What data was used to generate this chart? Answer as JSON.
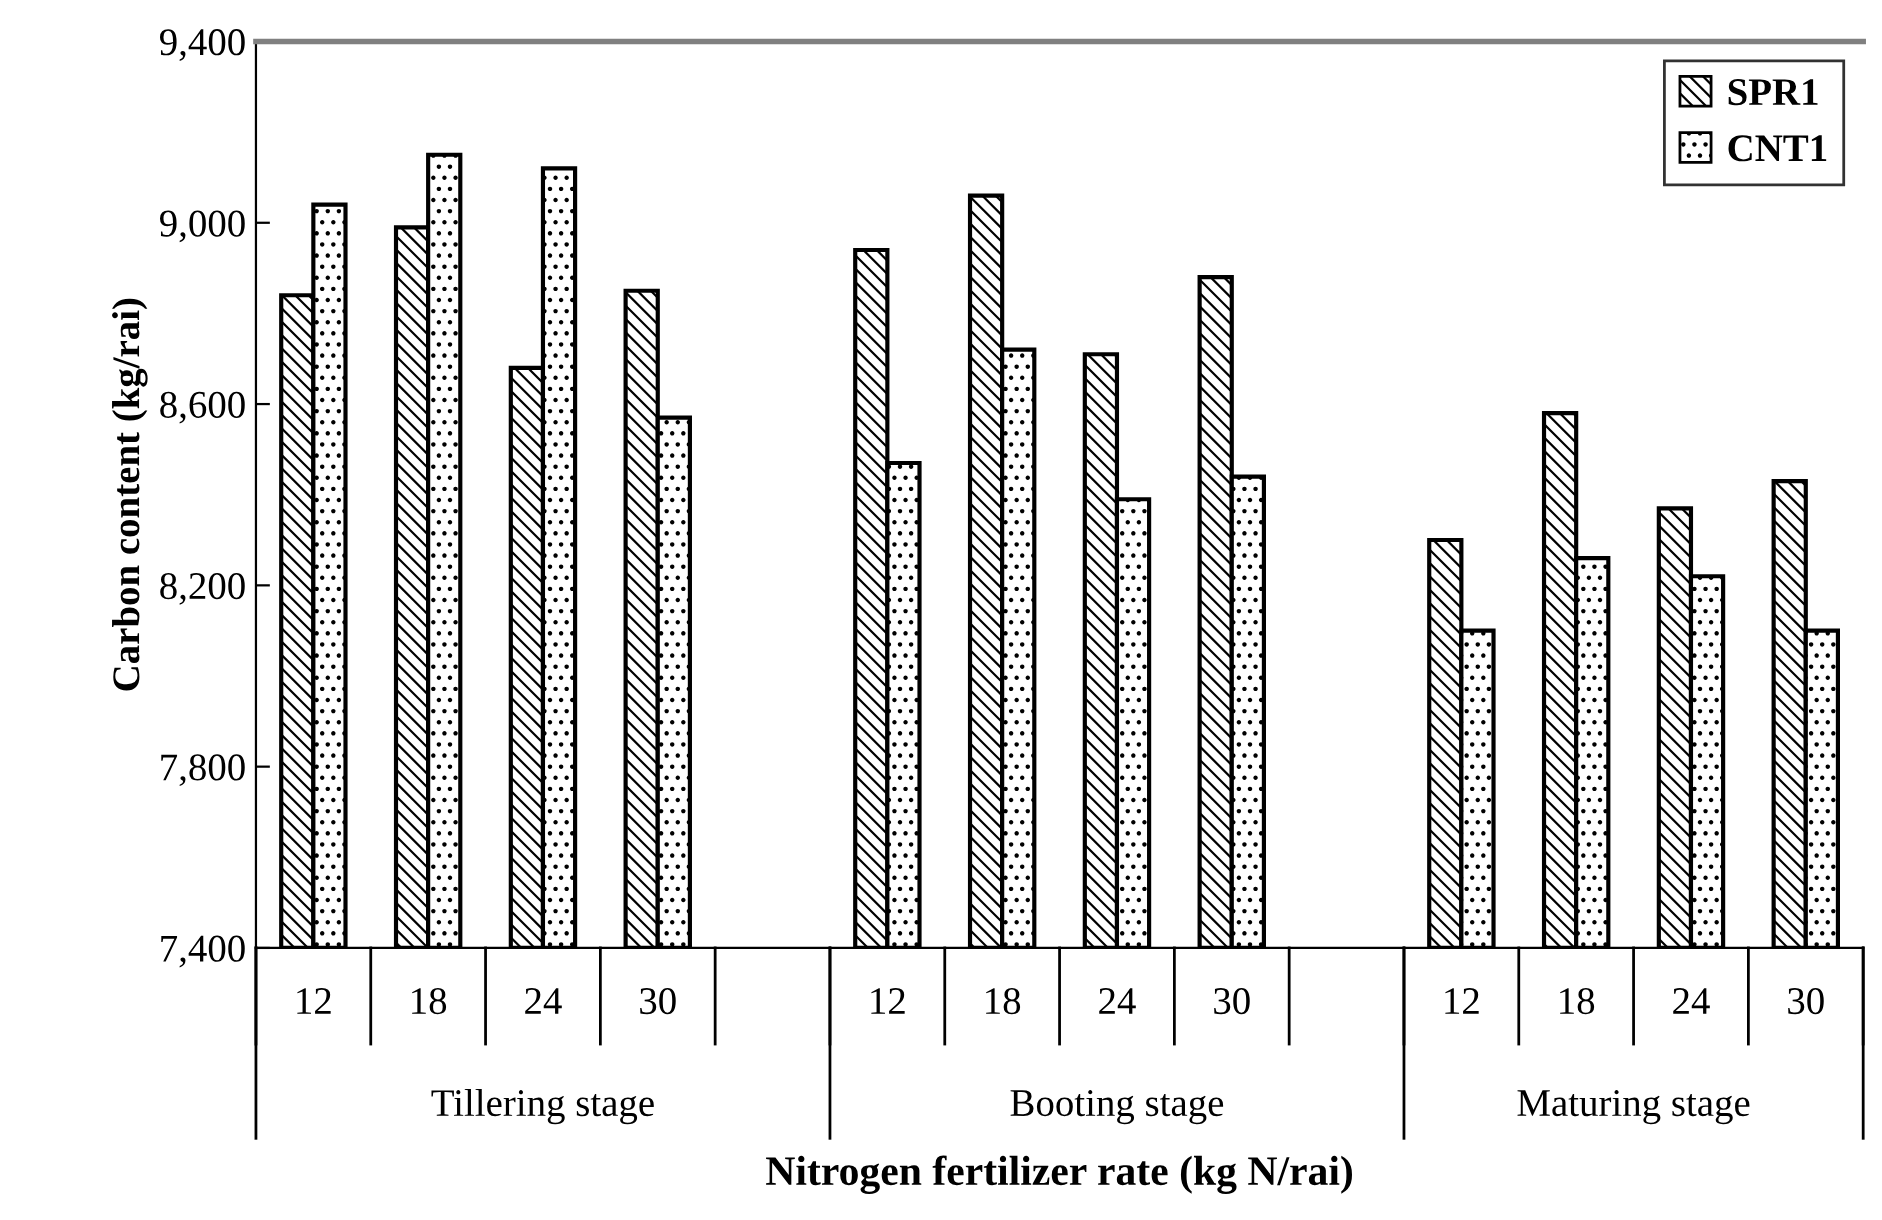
{
  "chart_data": {
    "type": "bar",
    "xlabel": "Nitrogen fertilizer rate (kg N/rai)",
    "ylabel": "Carbon content (kg/rai)",
    "categories": [
      "12",
      "18",
      "24",
      "30",
      null,
      "12",
      "18",
      "24",
      "30",
      null,
      "12",
      "18",
      "24",
      "30"
    ],
    "series": [
      {
        "name": "SPR1",
        "color": "#000000",
        "values": [
          8840,
          8990,
          8680,
          8850,
          null,
          8940,
          9060,
          8710,
          8880,
          null,
          8300,
          8580,
          8370,
          8430
        ]
      },
      {
        "name": "CNT1",
        "color": "#000000",
        "values": [
          9040,
          9150,
          9120,
          8570,
          null,
          8470,
          8720,
          8390,
          8440,
          null,
          8100,
          8260,
          8220,
          8100
        ]
      }
    ],
    "annotations": [
      "Tillering stage",
      "Booting stage",
      "Maturing stage"
    ],
    "ylim": [
      7400,
      9400
    ],
    "yticks": [
      {
        "value": 7400,
        "label": "7,400"
      },
      {
        "value": 7800,
        "label": "7,800"
      },
      {
        "value": 8200,
        "label": "8,200"
      },
      {
        "value": 8600,
        "label": "8,600"
      },
      {
        "value": 9000,
        "label": "9,000"
      },
      {
        "value": 9400,
        "label": "9,400"
      }
    ],
    "grid": false,
    "legend": "top right"
  }
}
